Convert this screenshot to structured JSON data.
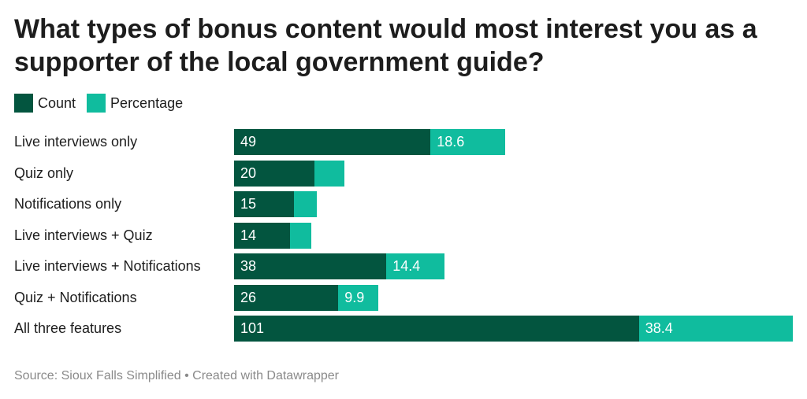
{
  "colors": {
    "count": "#03553f",
    "percentage": "#10bc9e"
  },
  "title": "What types of bonus content would most interest you as a supporter of the local government guide?",
  "legend": {
    "count": "Count",
    "percentage": "Percentage"
  },
  "footer": {
    "source": "Source: Sioux Falls Simplified",
    "separator": " • ",
    "credit": "Created with Datawrapper"
  },
  "chart_data": {
    "type": "bar",
    "orientation": "horizontal",
    "stacked": true,
    "title": "What types of bonus content would most interest you as a supporter of the local government guide?",
    "categories": [
      "Live interviews only",
      "Quiz only",
      "Notifications only",
      "Live interviews + Quiz",
      "Live interviews + Notifications",
      "Quiz + Notifications",
      "All three features"
    ],
    "series": [
      {
        "name": "Count",
        "values": [
          49,
          20,
          15,
          14,
          38,
          26,
          101
        ]
      },
      {
        "name": "Percentage",
        "values": [
          18.6,
          7.6,
          5.7,
          5.3,
          14.4,
          9.9,
          38.4
        ]
      }
    ],
    "shown_labels": {
      "Count": [
        "49",
        "20",
        "15",
        "14",
        "38",
        "26",
        "101"
      ],
      "Percentage": [
        "18.6",
        "",
        "",
        "",
        "14.4",
        "9.9",
        "38.4"
      ]
    },
    "legend": "top-left",
    "grid": false
  }
}
